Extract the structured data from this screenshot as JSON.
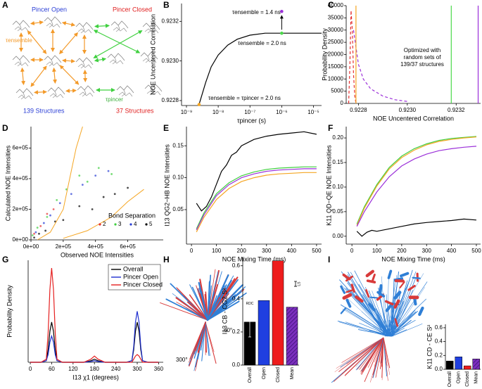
{
  "panel_labels": [
    "A",
    "B",
    "C",
    "D",
    "E",
    "F",
    "G",
    "H",
    "I"
  ],
  "diagram": {
    "open_title": "Pincer Open",
    "closed_title": "Pincer Closed",
    "tau_ensemble": "τensemble",
    "tau_pincer": "τpincer",
    "open_count": "139 Structures",
    "closed_count": "37 Structures"
  },
  "structure_labels": [
    "300°",
    "60°"
  ],
  "chart_data": [
    {
      "type": "line",
      "xlabel": "τpincer (s)",
      "ylabel": "NOE Uncentered Correlation",
      "xscale": "log",
      "xlim": [
        7e-10,
        1.8e-05
      ],
      "xticks": [
        {
          "value": 1e-09,
          "label": "10⁻⁹"
        },
        {
          "value": 1e-08,
          "label": "10⁻⁸"
        },
        {
          "value": 1e-07,
          "label": "10⁻⁷"
        },
        {
          "value": 1e-06,
          "label": "10⁻⁶"
        },
        {
          "value": 1e-05,
          "label": "10⁻⁵"
        }
      ],
      "ylim": [
        0.922775,
        0.92329
      ],
      "yticks": [
        0.9228,
        {
          "value": 0.923,
          "label": "0.9230"
        },
        0.9232
      ],
      "series": [
        {
          "color": "#000000",
          "x": [
            2.5e-09,
            4e-09,
            6e-09,
            1e-08,
            2e-08,
            4e-08,
            1e-07,
            3e-07,
            1e-06,
            1e-05,
            1.8e-05
          ],
          "values": [
            0.92278,
            0.92289,
            0.92297,
            0.92303,
            0.92308,
            0.92311,
            0.92313,
            0.92314,
            0.92314,
            0.92314,
            0.92314
          ]
        }
      ],
      "markers": {
        "x": [
          2.5e-09,
          1e-06,
          1e-06
        ],
        "values": [
          0.92278,
          0.92314,
          0.92325
        ],
        "colors": [
          "#f5a623",
          "#4cd94c",
          "#9b30d9"
        ]
      },
      "annotations": [
        "τensemble = 1.4 ns",
        "τensemble = 2.0 ns",
        "τensemble = τpincer = 2.0 ns"
      ]
    },
    {
      "type": "line",
      "xlabel": "NOE Uncentered Correlation",
      "ylabel": "Probability Density",
      "xlim": [
        0.92275,
        0.9233
      ],
      "xticks": [
        0.9228,
        {
          "value": 0.923,
          "label": "0.9230"
        },
        0.9232
      ],
      "ylim": [
        0,
        40000
      ],
      "yticks": [
        0,
        5000,
        10000,
        15000,
        20000,
        25000,
        30000,
        35000,
        40000
      ],
      "vlines": {
        "x": [
          0.92279,
          0.92318,
          0.92329
        ],
        "colors": [
          "#f5a623",
          "#4cd94c",
          "#9b30d9"
        ]
      },
      "series": [
        {
          "color": "#e53030",
          "dash": true,
          "x": [
            0.92276,
            0.922765,
            0.92277,
            0.922775,
            0.92278,
            0.922785,
            0.92279
          ],
          "values": [
            0,
            15000,
            38000,
            30000,
            12000,
            3000,
            0
          ]
        },
        {
          "color": "#9b30d9",
          "dash": true,
          "x": [
            0.92278,
            0.9228,
            0.92282,
            0.92285,
            0.9229,
            0.92295,
            0.923
          ],
          "values": [
            30000,
            16000,
            10000,
            6000,
            3000,
            1500,
            800
          ]
        }
      ],
      "annotations": [
        "Optimized with",
        "random sets of",
        "139/37 structures"
      ]
    },
    {
      "type": "scatter",
      "xlabel": "Observed NOE Intensities",
      "ylabel": "Calculated NOE Intensities",
      "xlim": [
        0,
        820000
      ],
      "xticks": [
        {
          "value": 0,
          "label": "0e+00"
        },
        {
          "value": 200000,
          "label": "2e+05"
        },
        {
          "value": 400000,
          "label": "4e+05"
        },
        {
          "value": 600000,
          "label": "6e+05"
        }
      ],
      "ylim": [
        0,
        740000
      ],
      "yticks": [
        {
          "value": 0,
          "label": "0e+00"
        },
        {
          "value": 200000,
          "label": "2e+05"
        },
        {
          "value": 400000,
          "label": "4e+05"
        },
        {
          "value": 600000,
          "label": "6e+05"
        }
      ],
      "legend_title": "Bond Separation",
      "series": [
        {
          "name": "2",
          "color": "#e53030",
          "x": [
            20000,
            60000,
            100000,
            140000
          ],
          "values": [
            40000,
            90000,
            170000,
            200000
          ]
        },
        {
          "name": "3",
          "color": "#3fcf3f",
          "x": [
            10000,
            40000,
            100000,
            160000,
            220000,
            300000,
            350000,
            420000,
            500000
          ],
          "values": [
            30000,
            80000,
            150000,
            260000,
            330000,
            420000,
            380000,
            470000,
            430000
          ]
        },
        {
          "name": "4",
          "color": "#2a3ed6",
          "x": [
            30000,
            80000,
            120000,
            180000,
            250000,
            320000,
            400000,
            480000
          ],
          "values": [
            50000,
            110000,
            160000,
            240000,
            300000,
            360000,
            420000,
            450000
          ]
        },
        {
          "name": "5",
          "color": "#000000",
          "x": [
            20000,
            50000,
            90000,
            150000,
            200000,
            300000,
            380000,
            450000,
            520000,
            600000
          ],
          "values": [
            15000,
            40000,
            60000,
            120000,
            130000,
            220000,
            200000,
            280000,
            300000,
            340000
          ]
        }
      ],
      "lines": [
        {
          "color": "#f5a623",
          "x": [
            40000,
            120000,
            200000,
            240000,
            280000,
            320000
          ],
          "values": [
            0,
            50000,
            200000,
            400000,
            600000,
            740000
          ]
        },
        {
          "color": "#f5a623",
          "x": [
            200000,
            350000,
            500000,
            600000,
            700000
          ],
          "values": [
            10000,
            60000,
            150000,
            250000,
            330000
          ]
        }
      ]
    },
    {
      "type": "line",
      "xlabel": "NOE Mixing Time (ms)",
      "ylabel": "I13 QG2−HB NOE Intensities",
      "xlim": [
        -20,
        520
      ],
      "xticks": [
        0,
        100,
        200,
        300,
        400,
        500
      ],
      "ylim": [
        -0.004,
        0.18
      ],
      "yticks": [
        0.05,
        {
          "value": 0.1,
          "label": "0.10"
        },
        0.15
      ],
      "series": [
        {
          "color": "#000000",
          "x": [
            20,
            40,
            60,
            80,
            100,
            120,
            140,
            160,
            180,
            200,
            250,
            300,
            350,
            400,
            450,
            500
          ],
          "values": [
            0.06,
            0.048,
            0.055,
            0.07,
            0.09,
            0.11,
            0.12,
            0.135,
            0.14,
            0.15,
            0.16,
            0.165,
            0.168,
            0.17,
            0.172,
            0.168
          ]
        },
        {
          "color": "#3fcf3f",
          "x": [
            20,
            50,
            100,
            150,
            200,
            250,
            300,
            350,
            400,
            450,
            500
          ],
          "values": [
            0.02,
            0.045,
            0.075,
            0.092,
            0.103,
            0.109,
            0.113,
            0.115,
            0.116,
            0.117,
            0.117
          ]
        },
        {
          "color": "#9b30d9",
          "x": [
            20,
            50,
            100,
            150,
            200,
            250,
            300,
            350,
            400,
            450,
            500
          ],
          "values": [
            0.018,
            0.042,
            0.072,
            0.089,
            0.1,
            0.106,
            0.11,
            0.112,
            0.113,
            0.114,
            0.114
          ]
        },
        {
          "color": "#f5a623",
          "x": [
            20,
            50,
            100,
            150,
            200,
            250,
            300,
            350,
            400,
            450,
            500
          ],
          "values": [
            0.015,
            0.038,
            0.066,
            0.083,
            0.094,
            0.1,
            0.104,
            0.106,
            0.107,
            0.108,
            0.108
          ]
        }
      ]
    },
    {
      "type": "line",
      "xlabel": "NOE Mixing Time (ms)",
      "ylabel": "K11 QD−QE NOE Intensities",
      "xlim": [
        -23,
        517
      ],
      "xticks": [
        0,
        100,
        200,
        300,
        400,
        500
      ],
      "ylim": [
        -0.016,
        0.223
      ],
      "yticks": [
        {
          "value": 0,
          "label": "0.00"
        },
        0.05,
        {
          "value": 0.1,
          "label": "0.10"
        },
        0.15,
        {
          "value": 0.2,
          "label": "0.20"
        }
      ],
      "series": [
        {
          "color": "#000000",
          "x": [
            20,
            40,
            60,
            80,
            100,
            150,
            200,
            250,
            300,
            350,
            400,
            450,
            500
          ],
          "values": [
            0.01,
            0,
            0.008,
            0.012,
            0.01,
            0.015,
            0.02,
            0.025,
            0.028,
            0.03,
            0.032,
            0.035,
            0.033
          ]
        },
        {
          "color": "#3fcf3f",
          "x": [
            20,
            50,
            100,
            150,
            200,
            250,
            300,
            350,
            400,
            450,
            500
          ],
          "values": [
            0.025,
            0.06,
            0.105,
            0.14,
            0.163,
            0.178,
            0.188,
            0.195,
            0.199,
            0.201,
            0.203
          ]
        },
        {
          "color": "#f5a623",
          "x": [
            20,
            50,
            100,
            150,
            200,
            250,
            300,
            350,
            400,
            450,
            500
          ],
          "values": [
            0.022,
            0.057,
            0.102,
            0.137,
            0.16,
            0.175,
            0.186,
            0.193,
            0.197,
            0.2,
            0.202
          ]
        },
        {
          "color": "#9b30d9",
          "x": [
            20,
            50,
            100,
            150,
            200,
            250,
            300,
            350,
            400,
            450,
            500
          ],
          "values": [
            0.02,
            0.05,
            0.09,
            0.121,
            0.143,
            0.157,
            0.167,
            0.174,
            0.178,
            0.181,
            0.183
          ]
        }
      ]
    },
    {
      "type": "line",
      "xlabel": "I13 χ1 (degrees)",
      "ylabel": "Probability Density",
      "legend": true,
      "xlim": [
        -6,
        373
      ],
      "xticks": [
        0,
        60,
        120,
        180,
        240,
        300,
        360
      ],
      "ylim": [
        0,
        0.066
      ],
      "series": [
        {
          "name": "Overall",
          "color": "#000000",
          "x": [
            0,
            30,
            45,
            50,
            55,
            60,
            65,
            70,
            75,
            90,
            150,
            170,
            180,
            190,
            210,
            270,
            285,
            290,
            295,
            300,
            305,
            310,
            315,
            330,
            360
          ],
          "values": [
            0,
            0,
            0.001,
            0.008,
            0.02,
            0.026,
            0.02,
            0.008,
            0.001,
            0,
            0,
            0.001,
            0.002,
            0.001,
            0,
            0,
            0.001,
            0.008,
            0.02,
            0.026,
            0.02,
            0.008,
            0.001,
            0,
            0
          ]
        },
        {
          "name": "Pincer Open",
          "color": "#1f2fd0",
          "x": [
            0,
            30,
            45,
            50,
            55,
            60,
            65,
            70,
            75,
            90,
            150,
            170,
            180,
            190,
            210,
            270,
            285,
            290,
            295,
            300,
            305,
            310,
            315,
            330,
            360
          ],
          "values": [
            0,
            0,
            0.001,
            0.005,
            0.013,
            0.017,
            0.013,
            0.005,
            0.001,
            0,
            0,
            0.0005,
            0.001,
            0.0005,
            0,
            0,
            0.001,
            0.01,
            0.026,
            0.033,
            0.026,
            0.01,
            0.001,
            0,
            0
          ]
        },
        {
          "name": "Pincer Closed",
          "color": "#e52020",
          "x": [
            0,
            30,
            45,
            50,
            55,
            60,
            65,
            70,
            75,
            90,
            150,
            170,
            180,
            190,
            210,
            270,
            285,
            290,
            295,
            300,
            305,
            310,
            315,
            330,
            360
          ],
          "values": [
            0,
            0,
            0.002,
            0.019,
            0.047,
            0.061,
            0.047,
            0.019,
            0.002,
            0,
            0,
            0.002,
            0.004,
            0.002,
            0,
            0,
            0,
            0.002,
            0.004,
            0.005,
            0.004,
            0.002,
            0,
            0,
            0
          ]
        }
      ]
    },
    {
      "type": "bar",
      "ylabel": "I13 CB - CG2 S²",
      "categories": [
        "Overall",
        "Open",
        "Closed",
        "Mean"
      ],
      "values": [
        0.26,
        0.39,
        0.63,
        0.35
      ],
      "colors": [
        "#000000",
        "#1f3fe0",
        "#ee1c1c",
        "#7b2fbe"
      ],
      "hatch_index": 3,
      "error": 0.09,
      "ls_error": 0.03,
      "ylim": [
        0,
        0.65
      ],
      "yticks": [
        {
          "value": 0,
          "label": "0.0"
        },
        0.2,
        0.4,
        0.6
      ],
      "annotations": [
        "RDC",
        "LS"
      ]
    },
    {
      "type": "bar",
      "ylabel": "K11 CD - CE S²",
      "categories": [
        "Overall",
        "Open",
        "Closed",
        "Mean"
      ],
      "values": [
        0.12,
        0.18,
        0.05,
        0.15
      ],
      "colors": [
        "#000000",
        "#1f3fe0",
        "#ee1c1c",
        "#7b2fbe"
      ],
      "hatch_index": 3,
      "ylim": [
        0,
        0.65
      ],
      "yticks": [
        {
          "value": 0,
          "label": "0.0"
        },
        0.2,
        0.4,
        0.6
      ]
    }
  ]
}
